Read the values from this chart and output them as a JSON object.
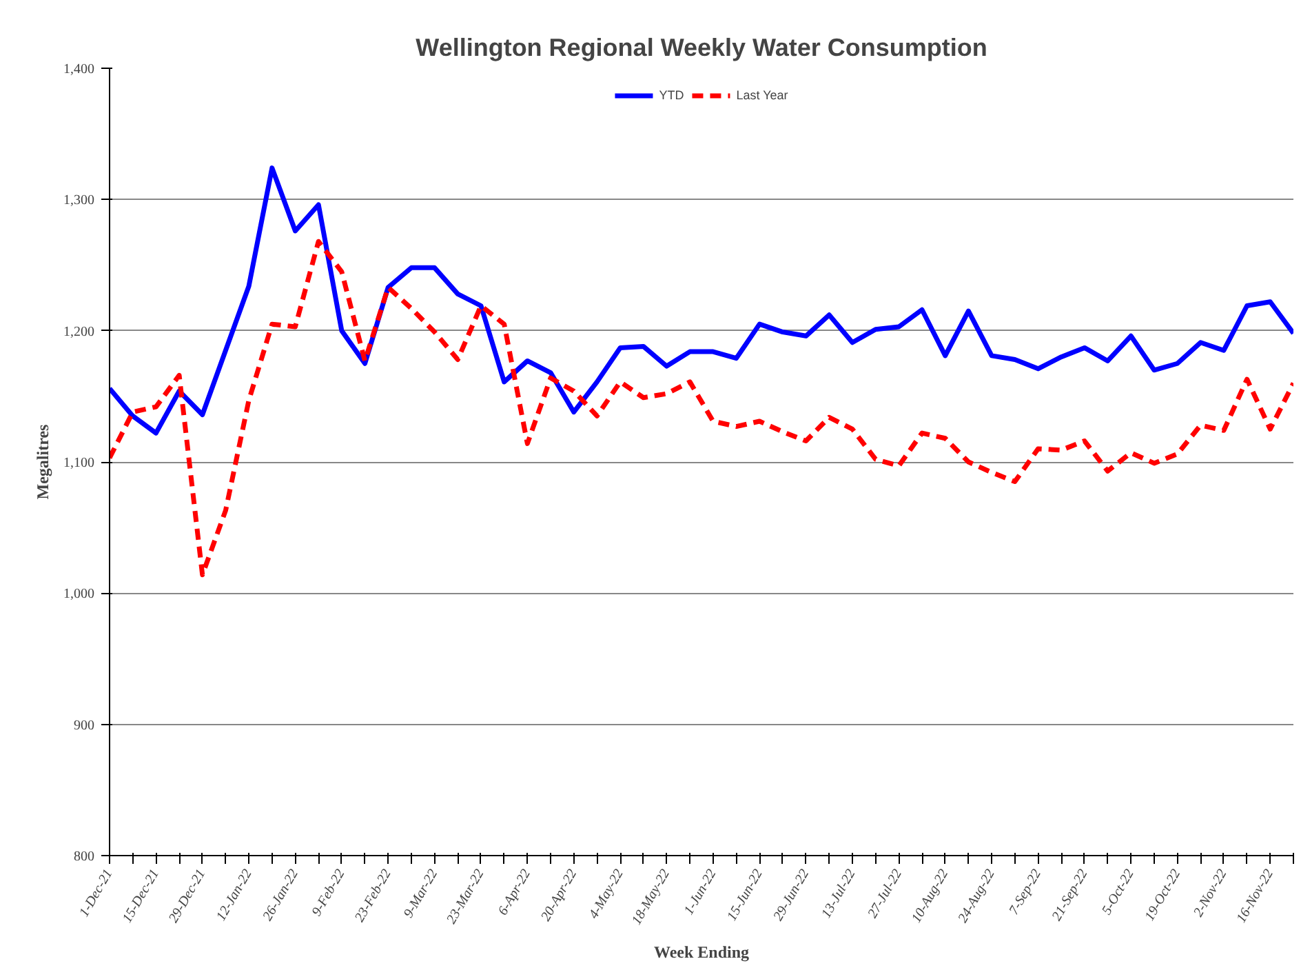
{
  "chart_data": {
    "type": "line",
    "title": "Wellington Regional Weekly Water Consumption",
    "xlabel": "Week Ending",
    "ylabel": "Megalitres",
    "categories": [
      "1-Dec-21",
      null,
      "15-Dec-21",
      null,
      "29-Dec-21",
      null,
      "12-Jan-22",
      null,
      "26-Jan-22",
      null,
      "9-Feb-22",
      null,
      "23-Feb-22",
      null,
      "9-Mar-22",
      null,
      "23-Mar-22",
      null,
      "6-Apr-22",
      null,
      "20-Apr-22",
      null,
      "4-May-22",
      null,
      "18-May-22",
      null,
      "1-Jun-22",
      null,
      "15-Jun-22",
      null,
      "29-Jun-22",
      null,
      "13-Jul-22",
      null,
      "27-Jul-22",
      null,
      "10-Aug-22",
      null,
      "24-Aug-22",
      null,
      "7-Sep-22",
      null,
      "21-Sep-22",
      null,
      "5-Oct-22",
      null,
      "19-Oct-22",
      null,
      "2-Nov-22",
      null,
      "16-Nov-22",
      null
    ],
    "series": [
      {
        "name": "YTD",
        "color": "#0000ff",
        "line_style": "solid",
        "values": [
          1156,
          1135,
          1122,
          1154,
          1136,
          1185,
          1234,
          1324,
          1276,
          1296,
          1200,
          1175,
          1233,
          1248,
          1248,
          1228,
          1219,
          1161,
          1177,
          1168,
          1138,
          1161,
          1187,
          1188,
          1173,
          1184,
          1184,
          1179,
          1205,
          1199,
          1196,
          1212,
          1191,
          1201,
          1203,
          1216,
          1181,
          1215,
          1181,
          1178,
          1171,
          1180,
          1187,
          1177,
          1196,
          1170,
          1175,
          1191,
          1185,
          1219,
          1222,
          1198
        ]
      },
      {
        "name": "Last Year",
        "color": "#ff0000",
        "line_style": "dashed",
        "values": [
          1103,
          1138,
          1142,
          1166,
          1014,
          1063,
          1147,
          1205,
          1203,
          1268,
          1245,
          1177,
          1233,
          1217,
          1199,
          1178,
          1219,
          1205,
          1114,
          1164,
          1154,
          1135,
          1161,
          1149,
          1152,
          1161,
          1131,
          1127,
          1131,
          1123,
          1116,
          1134,
          1125,
          1102,
          1097,
          1122,
          1118,
          1100,
          1092,
          1085,
          1110,
          1109,
          1116,
          1093,
          1107,
          1099,
          1106,
          1128,
          1124,
          1163,
          1125,
          1160
        ]
      }
    ],
    "ylim": [
      800,
      1400
    ],
    "yticks": [
      {
        "value": 800,
        "label": "800"
      },
      {
        "value": 900,
        "label": "900"
      },
      {
        "value": 1000,
        "label": "1,000"
      },
      {
        "value": 1100,
        "label": "1,100"
      },
      {
        "value": 1200,
        "label": "1,200"
      },
      {
        "value": 1300,
        "label": "1,300"
      },
      {
        "value": 1400,
        "label": "1,400"
      }
    ],
    "grid": "y",
    "legend": "top",
    "marker": "none"
  }
}
